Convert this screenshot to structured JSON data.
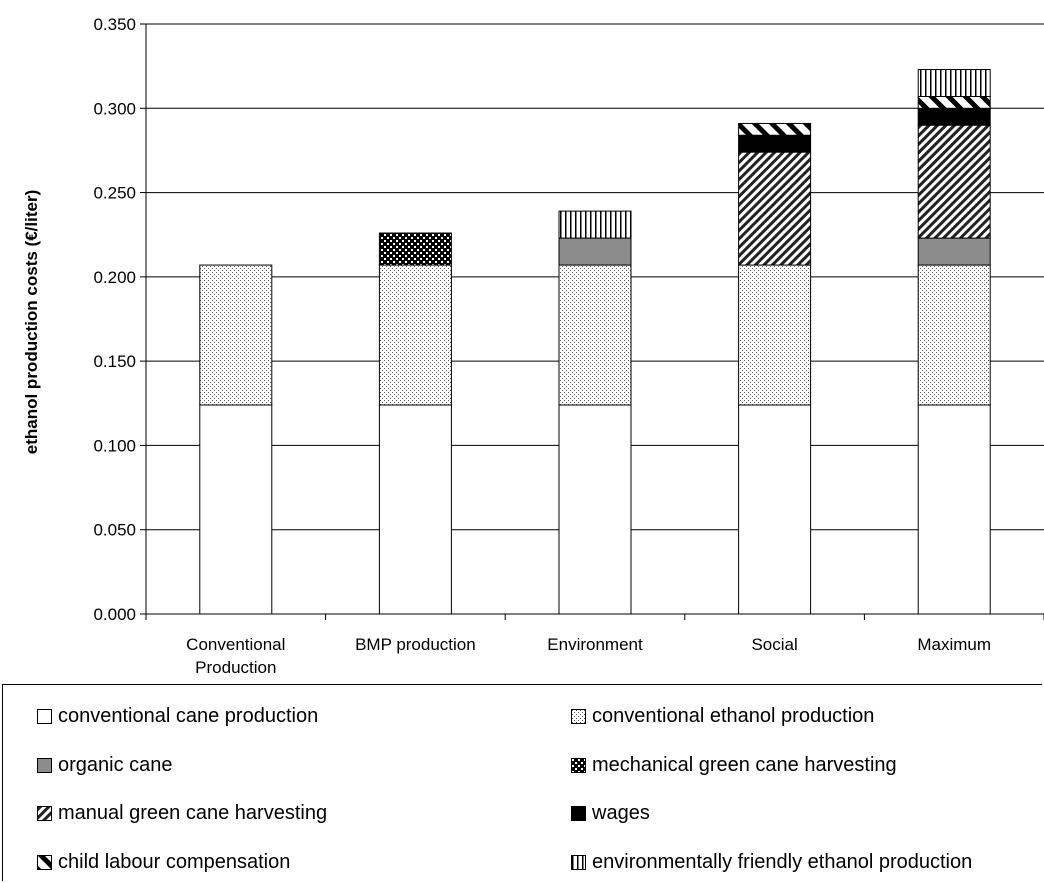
{
  "chart_data": {
    "type": "bar",
    "stacked": true,
    "ylabel": "ethanol production costs (€/liter)",
    "xlabel": "",
    "title": "",
    "ylim": [
      0,
      0.35
    ],
    "yticks": [
      "0.000",
      "0.050",
      "0.100",
      "0.150",
      "0.200",
      "0.250",
      "0.300",
      "0.350"
    ],
    "grid": true,
    "legend_position": "bottom",
    "categories": [
      "Conventional\nProduction",
      "BMP production",
      "Environment",
      "Social",
      "Maximum"
    ],
    "series": [
      {
        "name": "conventional cane production",
        "pattern": "white",
        "values": [
          0.124,
          0.124,
          0.124,
          0.124,
          0.124
        ]
      },
      {
        "name": "conventional ethanol production",
        "pattern": "dots",
        "values": [
          0.083,
          0.083,
          0.083,
          0.083,
          0.083
        ]
      },
      {
        "name": "organic cane",
        "pattern": "gray",
        "values": [
          0,
          0,
          0.016,
          0,
          0.016
        ]
      },
      {
        "name": "mechanical green cane harvesting",
        "pattern": "checker",
        "values": [
          0,
          0.019,
          0,
          0,
          0
        ]
      },
      {
        "name": "manual green cane harvesting",
        "pattern": "diagonal",
        "values": [
          0,
          0,
          0,
          0.067,
          0.067
        ]
      },
      {
        "name": "wages",
        "pattern": "black",
        "values": [
          0,
          0,
          0,
          0.01,
          0.01
        ]
      },
      {
        "name": "child labour compensation",
        "pattern": "wide-diagonal",
        "values": [
          0,
          0,
          0,
          0.007,
          0.007
        ]
      },
      {
        "name": "environmentally friendly ethanol production",
        "pattern": "vertical",
        "values": [
          0,
          0,
          0.016,
          0,
          0.016
        ]
      }
    ]
  }
}
